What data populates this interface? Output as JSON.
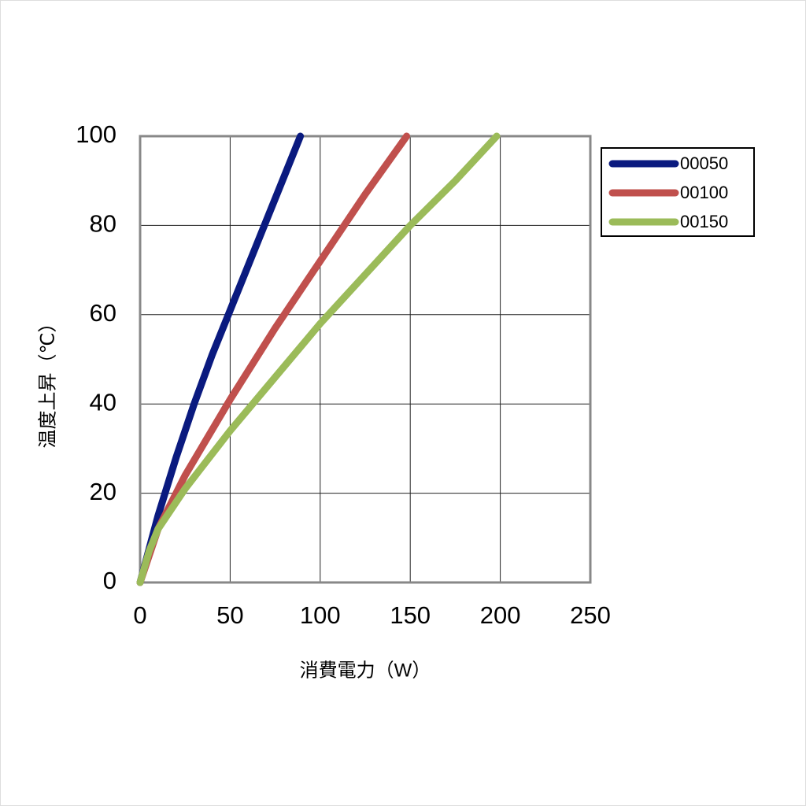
{
  "chart_data": {
    "type": "line",
    "xlabel": "消費電力（W）",
    "ylabel": "温度上昇（℃）",
    "xlim": [
      0,
      250
    ],
    "xticks": [
      0,
      50,
      100,
      150,
      200,
      250
    ],
    "ylim": [
      0,
      100
    ],
    "yticks": [
      0,
      20,
      40,
      60,
      80,
      100
    ],
    "grid": true,
    "legend": "upper right",
    "series": [
      {
        "name": "00050",
        "color": "#0a1a7f",
        "x": [
          0,
          10,
          20,
          30,
          40,
          50,
          60,
          70,
          80,
          89
        ],
        "values": [
          0,
          15,
          28,
          40,
          51,
          61,
          71,
          81,
          91,
          100
        ]
      },
      {
        "name": "00100",
        "color": "#c0504d",
        "x": [
          0,
          10,
          25,
          50,
          75,
          100,
          125,
          148
        ],
        "values": [
          0,
          12,
          24,
          41,
          57,
          72,
          87,
          100
        ]
      },
      {
        "name": "00150",
        "color": "#9bbb59",
        "x": [
          0,
          5,
          10,
          25,
          50,
          75,
          100,
          125,
          150,
          175,
          198
        ],
        "values": [
          0,
          7,
          12,
          21,
          34,
          46,
          58,
          69,
          80,
          90,
          100
        ]
      }
    ]
  }
}
